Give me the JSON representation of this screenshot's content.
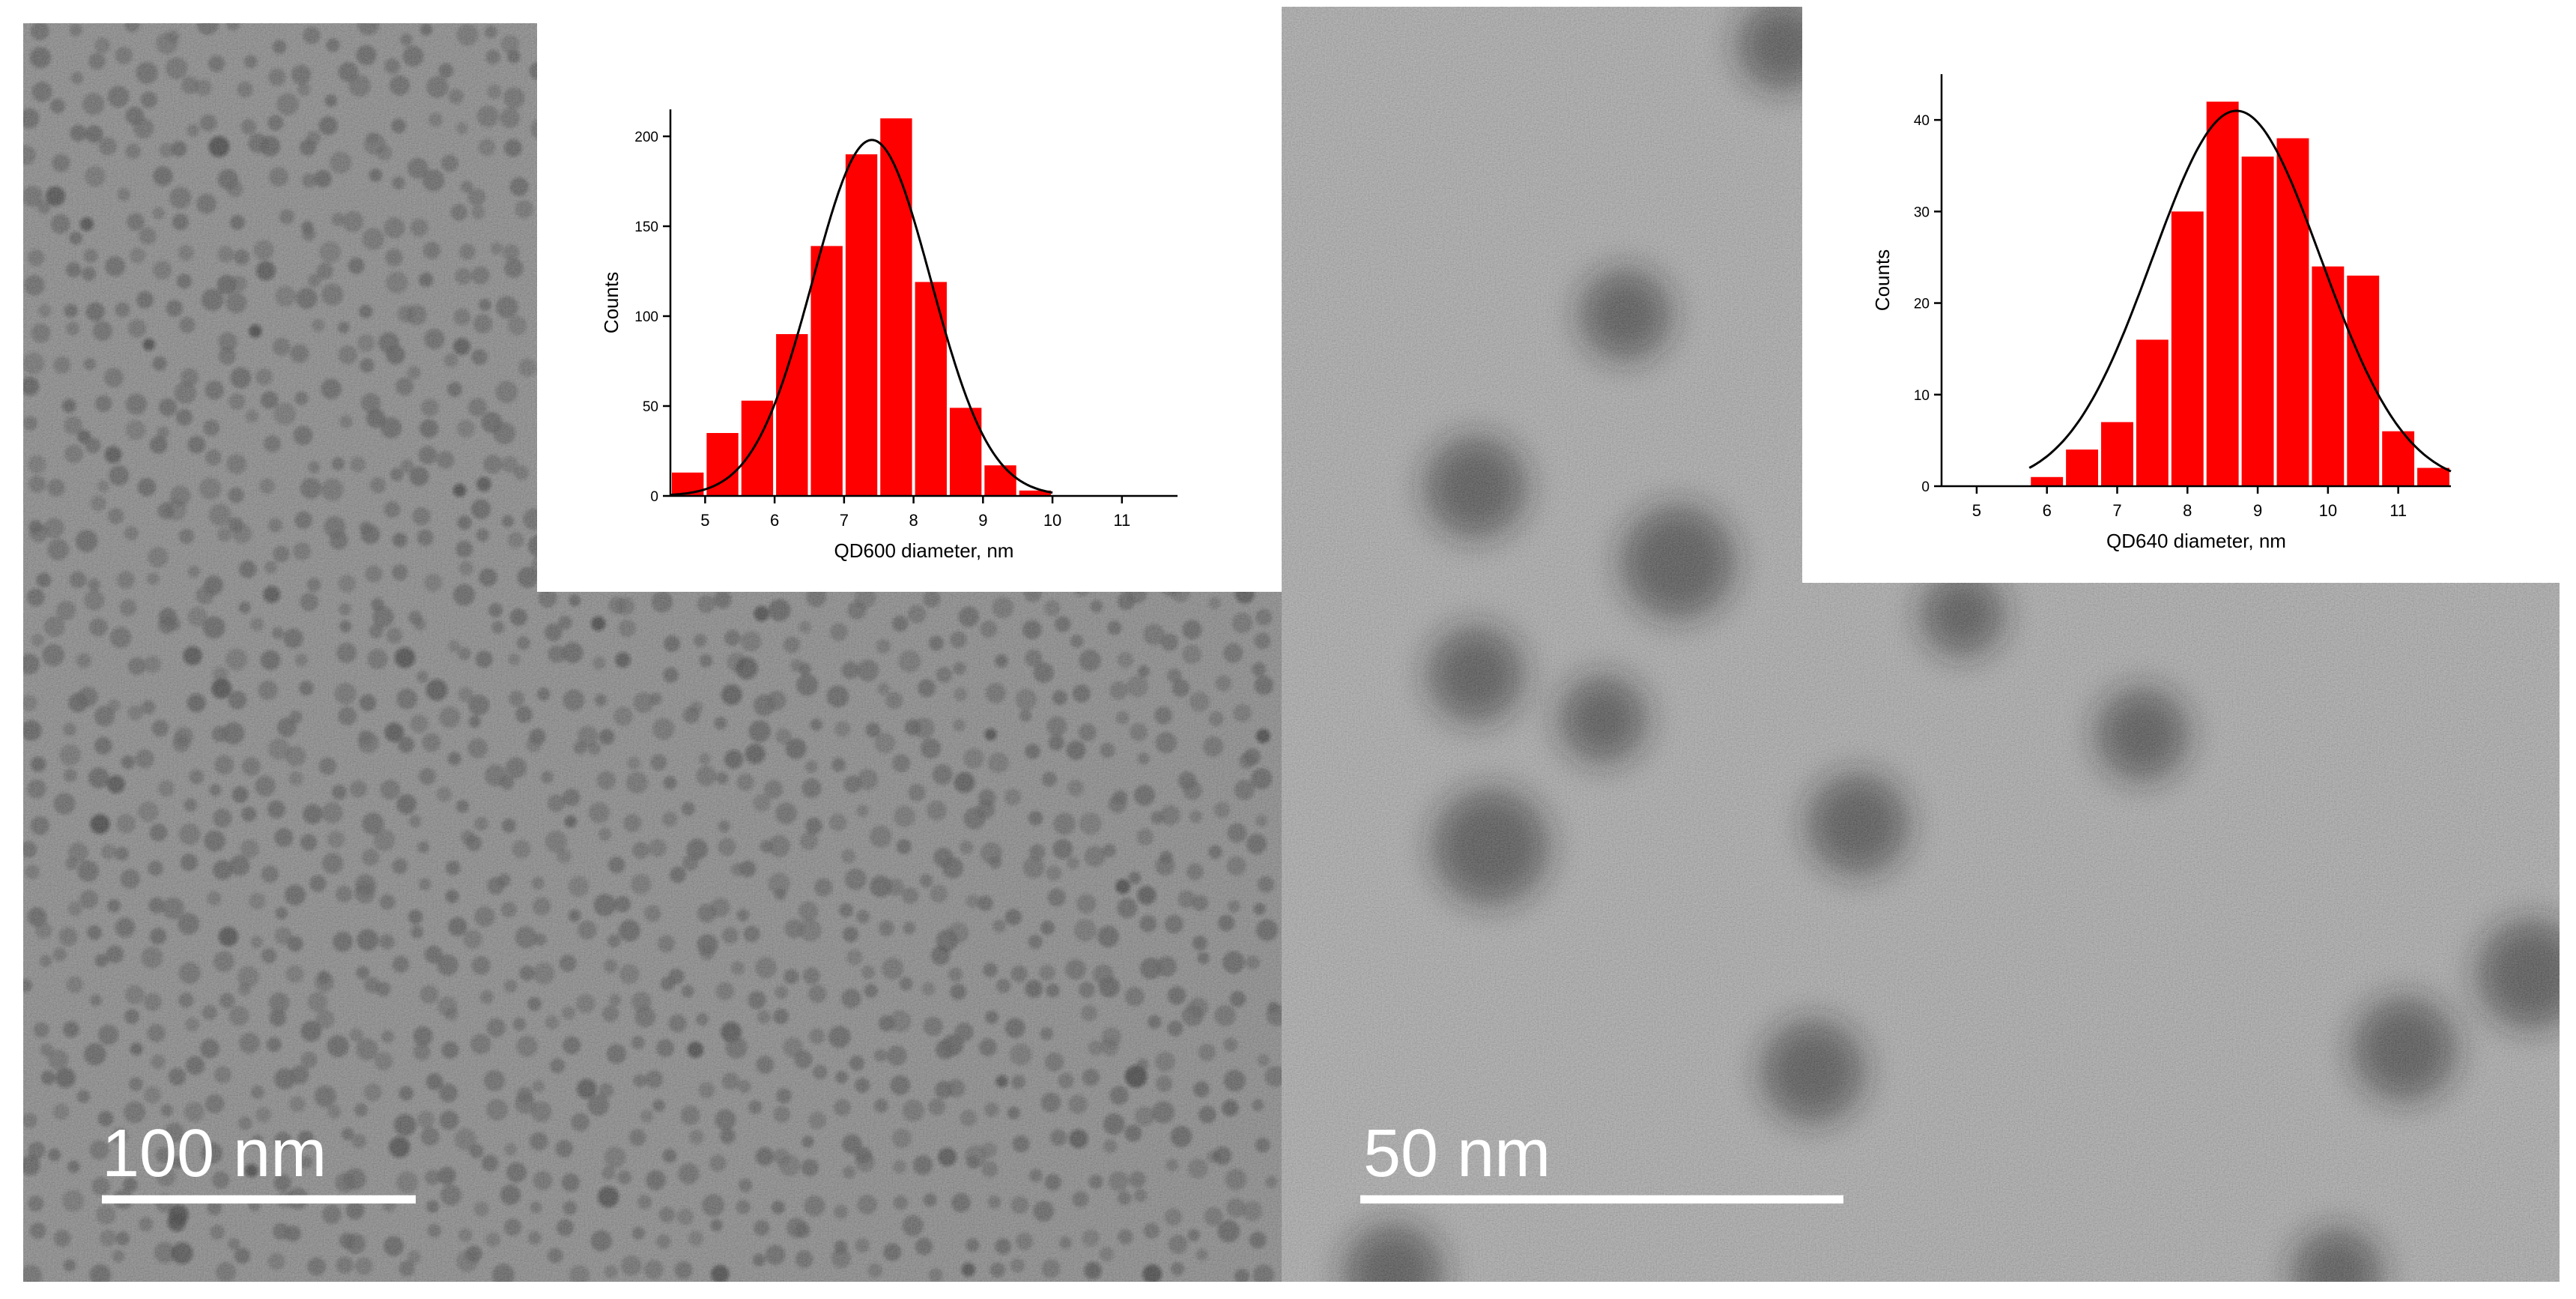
{
  "scale_bars": [
    "100 nm",
    "50 nm"
  ],
  "chart_data": [
    {
      "type": "histogram",
      "x_label": "QD600 diameter, nm",
      "y_label": "Counts",
      "color": "#ff0000",
      "bins": [
        4.5,
        5,
        5.5,
        6,
        6.5,
        7,
        7.5,
        8,
        8.5,
        9,
        9.5,
        10
      ],
      "values": [
        13,
        35,
        53,
        90,
        139,
        190,
        210,
        119,
        49,
        17,
        3
      ],
      "fit": {
        "mean": 7.4,
        "sigma": 0.85,
        "peak": 198
      },
      "xlim": [
        4.5,
        11.8
      ],
      "xticks": [
        5,
        6,
        7,
        8,
        9,
        10,
        11
      ],
      "ylim": [
        0,
        215
      ],
      "yticks": [
        0,
        50,
        100,
        150,
        200
      ]
    },
    {
      "type": "histogram",
      "x_label": "QD640 diameter, nm",
      "y_label": "Counts",
      "color": "#ff0000",
      "bins": [
        5.75,
        6.25,
        6.75,
        7.25,
        7.75,
        8.25,
        8.75,
        9.25,
        9.75,
        10.25,
        10.75,
        11.25,
        11.75
      ],
      "values": [
        1,
        4,
        7,
        16,
        30,
        42,
        36,
        38,
        24,
        23,
        6,
        2
      ],
      "fit": {
        "mean": 8.7,
        "sigma": 1.2,
        "peak": 41
      },
      "xlim": [
        4.5,
        11.75
      ],
      "xticks": [
        5,
        6,
        7,
        8,
        9,
        10,
        11
      ],
      "ylim": [
        0,
        45
      ],
      "yticks": [
        0,
        10,
        20,
        30,
        40
      ]
    }
  ]
}
